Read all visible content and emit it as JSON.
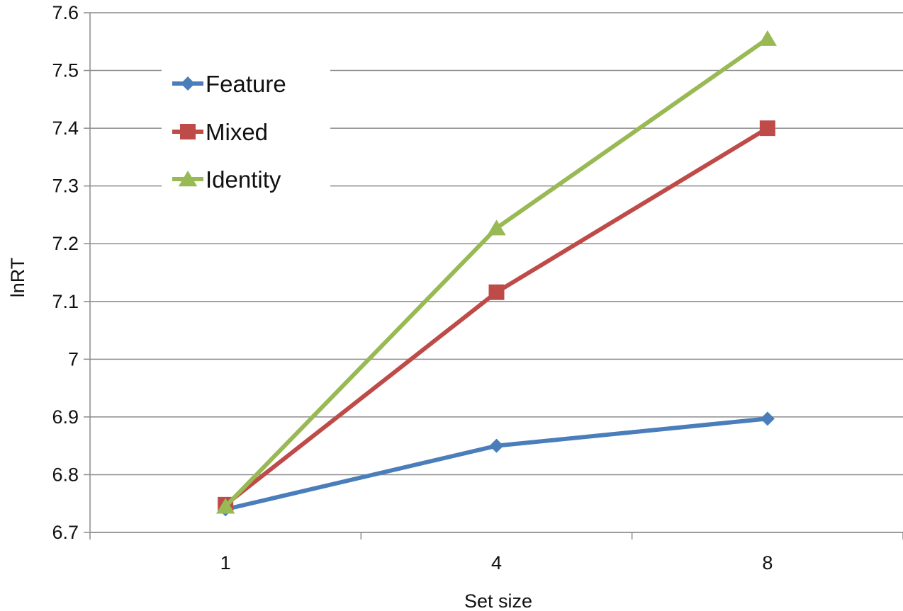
{
  "chart_data": {
    "type": "line",
    "categories": [
      "1",
      "4",
      "8"
    ],
    "series": [
      {
        "name": "Feature",
        "values": [
          6.74,
          6.85,
          6.897
        ],
        "color": "#4a7ebb",
        "marker": "diamond"
      },
      {
        "name": "Mixed",
        "values": [
          6.748,
          7.116,
          7.4
        ],
        "color": "#be4b48",
        "marker": "square"
      },
      {
        "name": "Identity",
        "values": [
          6.745,
          7.227,
          7.555
        ],
        "color": "#98b954",
        "marker": "triangle"
      }
    ],
    "xlabel": "Set size",
    "ylabel": "lnRT",
    "ylim": [
      6.7,
      7.6
    ],
    "yticks": [
      "6.7",
      "6.8",
      "6.9",
      "7",
      "7.1",
      "7.2",
      "7.3",
      "7.4",
      "7.5",
      "7.6"
    ],
    "grid": true,
    "legend_position": "top-left"
  }
}
